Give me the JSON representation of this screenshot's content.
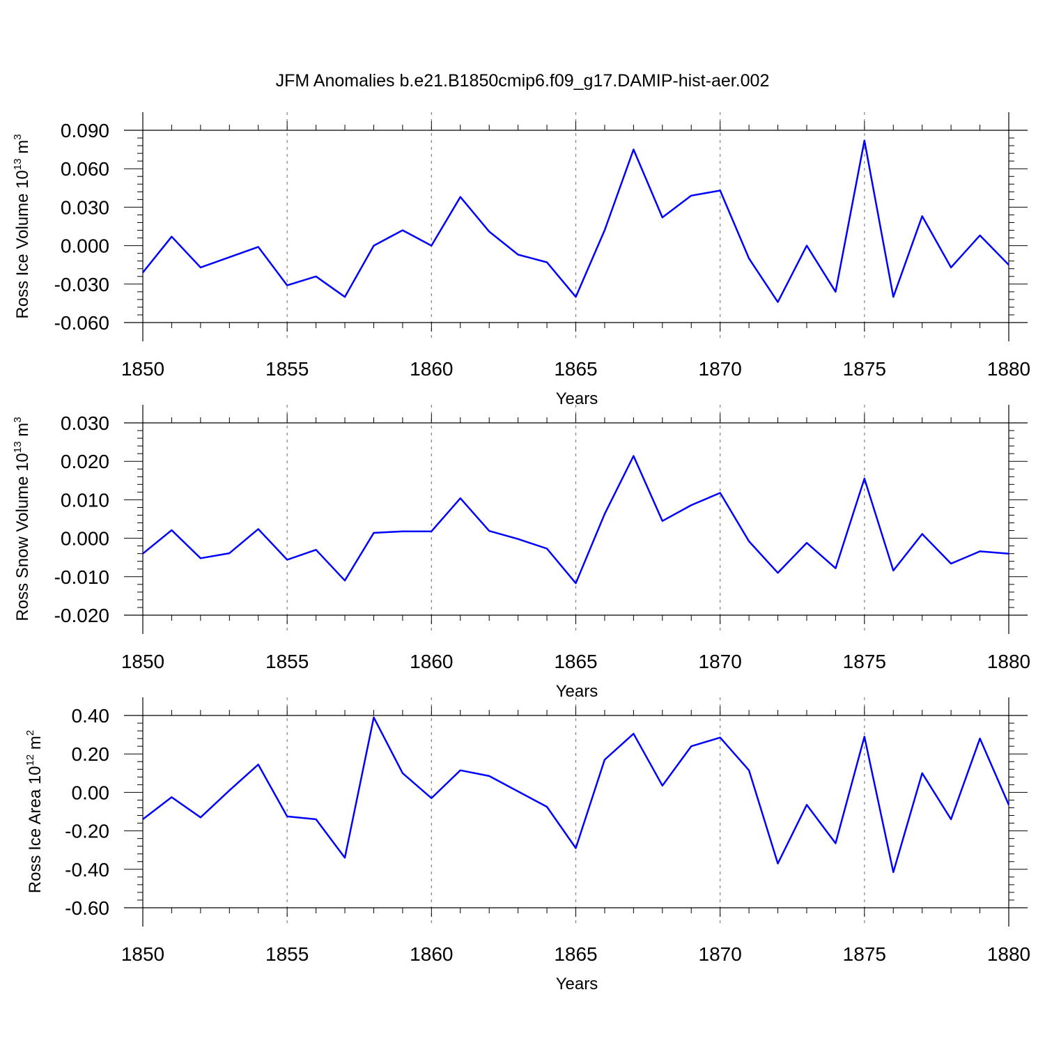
{
  "title": "JFM Anomalies b.e21.B1850cmip6.f09_g17.DAMIP-hist-aer.002",
  "colors": {
    "line": "#0000ff",
    "axis": "#000000",
    "grid": "#808080",
    "background": "#ffffff"
  },
  "chart_data": [
    {
      "type": "line",
      "xlabel": "Years",
      "ylabel": {
        "text": "Ross Ice Volume 10",
        "exponent": "13",
        "unit": "m",
        "unit_exponent": "3"
      },
      "xlim": [
        1850,
        1880
      ],
      "ylim": [
        -0.06,
        0.09
      ],
      "xticks": [
        "1850",
        "1855",
        "1860",
        "1865",
        "1870",
        "1875",
        "1880"
      ],
      "yticks": [
        "0.090",
        "0.060",
        "0.030",
        "0.000",
        "-0.030",
        "-0.060"
      ],
      "ytick_values": [
        0.09,
        0.06,
        0.03,
        0.0,
        -0.03,
        -0.06
      ],
      "grid": "vertical dashed at major x ticks",
      "series": [
        {
          "x": [
            1850,
            1851,
            1852,
            1853,
            1854,
            1855,
            1856,
            1857,
            1858,
            1859,
            1860,
            1861,
            1862,
            1863,
            1864,
            1865,
            1866,
            1867,
            1868,
            1869,
            1870,
            1871,
            1872,
            1873,
            1874,
            1875,
            1876,
            1877,
            1878,
            1879,
            1880
          ],
          "values": [
            -0.021,
            0.007,
            -0.017,
            -0.009,
            -0.001,
            -0.031,
            -0.024,
            -0.04,
            0.0,
            0.012,
            0.0,
            0.038,
            0.011,
            -0.007,
            -0.013,
            -0.04,
            0.012,
            0.075,
            0.022,
            0.039,
            0.043,
            -0.01,
            -0.044,
            0.0,
            -0.036,
            0.082,
            -0.04,
            0.023,
            -0.017,
            0.008,
            -0.015
          ]
        }
      ]
    },
    {
      "type": "line",
      "xlabel": "Years",
      "ylabel": {
        "text": "Ross Snow Volume 10",
        "exponent": "13",
        "unit": "m",
        "unit_exponent": "3"
      },
      "xlim": [
        1850,
        1880
      ],
      "ylim": [
        -0.02,
        0.03
      ],
      "xticks": [
        "1850",
        "1855",
        "1860",
        "1865",
        "1870",
        "1875",
        "1880"
      ],
      "yticks": [
        "0.030",
        "0.020",
        "0.010",
        "0.000",
        "-0.010",
        "-0.020"
      ],
      "ytick_values": [
        0.03,
        0.02,
        0.01,
        0.0,
        -0.01,
        -0.02
      ],
      "grid": "vertical dashed at major x ticks",
      "series": [
        {
          "x": [
            1850,
            1851,
            1852,
            1853,
            1854,
            1855,
            1856,
            1857,
            1858,
            1859,
            1860,
            1861,
            1862,
            1863,
            1864,
            1865,
            1866,
            1867,
            1868,
            1869,
            1870,
            1871,
            1872,
            1873,
            1874,
            1875,
            1876,
            1877,
            1878,
            1879,
            1880
          ],
          "values": [
            -0.004,
            0.0021,
            -0.0052,
            -0.0039,
            0.0024,
            -0.0056,
            -0.003,
            -0.011,
            0.0014,
            0.0018,
            0.0018,
            0.0104,
            0.0019,
            -0.0002,
            -0.0027,
            -0.0117,
            0.0063,
            0.0214,
            0.0045,
            0.0086,
            0.0118,
            -0.0008,
            -0.009,
            -0.0012,
            -0.0078,
            0.0155,
            -0.0084,
            0.0011,
            -0.0066,
            -0.0034,
            -0.004
          ]
        }
      ]
    },
    {
      "type": "line",
      "xlabel": "Years",
      "ylabel": {
        "text": "Ross Ice Area 10",
        "exponent": "12",
        "unit": "m",
        "unit_exponent": "2"
      },
      "xlim": [
        1850,
        1880
      ],
      "ylim": [
        -0.6,
        0.4
      ],
      "xticks": [
        "1850",
        "1855",
        "1860",
        "1865",
        "1870",
        "1875",
        "1880"
      ],
      "yticks": [
        "0.40",
        "0.20",
        "0.00",
        "-0.20",
        "-0.40",
        "-0.60"
      ],
      "ytick_values": [
        0.4,
        0.2,
        0.0,
        -0.2,
        -0.4,
        -0.6
      ],
      "grid": "vertical dashed at major x ticks",
      "series": [
        {
          "x": [
            1850,
            1851,
            1852,
            1853,
            1854,
            1855,
            1856,
            1857,
            1858,
            1859,
            1860,
            1861,
            1862,
            1863,
            1864,
            1865,
            1866,
            1867,
            1868,
            1869,
            1870,
            1871,
            1872,
            1873,
            1874,
            1875,
            1876,
            1877,
            1878,
            1879,
            1880
          ],
          "values": [
            -0.14,
            -0.025,
            -0.13,
            0.01,
            0.145,
            -0.125,
            -0.14,
            -0.34,
            0.39,
            0.1,
            -0.03,
            0.115,
            0.085,
            0.005,
            -0.075,
            -0.29,
            0.17,
            0.305,
            0.035,
            0.24,
            0.285,
            0.115,
            -0.37,
            -0.065,
            -0.265,
            0.29,
            -0.415,
            0.1,
            -0.14,
            0.28,
            -0.065
          ]
        }
      ]
    }
  ]
}
